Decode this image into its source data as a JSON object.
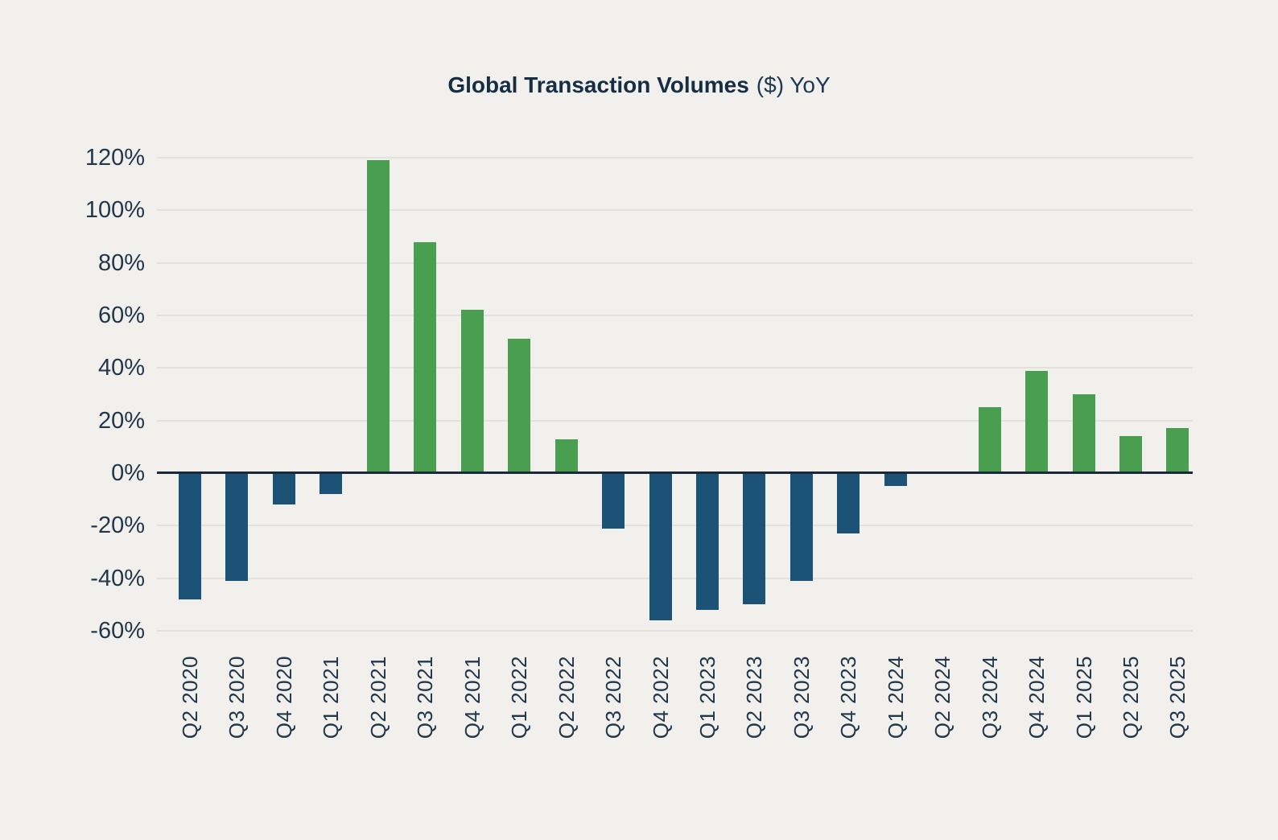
{
  "title": {
    "bold": "Global Transaction Volumes",
    "regular": "($) YoY"
  },
  "colors": {
    "positive": "#4A9E50",
    "negative": "#1B5276",
    "axis": "#1B2A38",
    "gridline": "#E3E1DE",
    "background": "#F1F0ED",
    "label_text": "#22384A",
    "title_text": "#152E43"
  },
  "chart_data": {
    "type": "bar",
    "title": "Global Transaction Volumes ($) YoY",
    "xlabel": "",
    "ylabel": "",
    "categories": [
      "Q2 2020",
      "Q3 2020",
      "Q4 2020",
      "Q1 2021",
      "Q2 2021",
      "Q3 2021",
      "Q4 2021",
      "Q1 2022",
      "Q2 2022",
      "Q3 2022",
      "Q4 2022",
      "Q1 2023",
      "Q2 2023",
      "Q3 2023",
      "Q4 2023",
      "Q1 2024",
      "Q2 2024",
      "Q3 2024",
      "Q4 2024",
      "Q1 2025",
      "Q2 2025",
      "Q3 2025"
    ],
    "values": [
      -48,
      -41,
      -12,
      -8,
      119,
      88,
      62,
      51,
      13,
      -21,
      -56,
      -52,
      -50,
      -41,
      -23,
      -5,
      0,
      25,
      39,
      30,
      14,
      17
    ],
    "value_unit": "%",
    "ylim": [
      -60,
      120
    ],
    "ytick_step": 20,
    "ytick_labels": [
      "120%",
      "100%",
      "80%",
      "60%",
      "40%",
      "20%",
      "0%",
      "-20%",
      "-40%",
      "-60%"
    ],
    "grid": "horizontal",
    "legend_position": "none",
    "bar_color_rule": "positive=green, negative=navy"
  }
}
